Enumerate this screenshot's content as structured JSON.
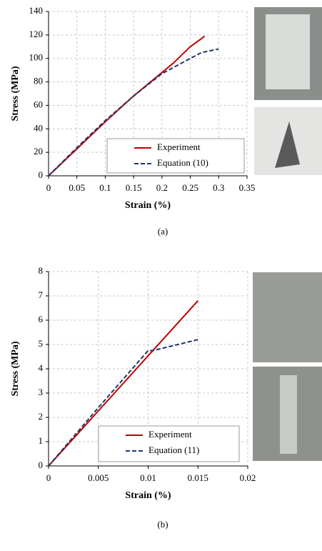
{
  "chart_data": [
    {
      "type": "line",
      "x_label": "Strain (%)",
      "y_label": "Stress (MPa)",
      "caption": "(a)",
      "xlim": [
        0,
        0.35
      ],
      "xticks": [
        0,
        0.05,
        0.1,
        0.15,
        0.2,
        0.25,
        0.3,
        0.35
      ],
      "ylim": [
        0,
        140
      ],
      "yticks": [
        0,
        20,
        40,
        60,
        80,
        100,
        120,
        140
      ],
      "grid": true,
      "legend": "lower right",
      "series": [
        {
          "name": "Experiment",
          "color": "#c00000",
          "style": "solid",
          "x": [
            0,
            0.05,
            0.1,
            0.15,
            0.2,
            0.22,
            0.25,
            0.27,
            0.275
          ],
          "values": [
            0,
            23,
            46,
            68,
            88,
            96,
            110,
            117,
            119
          ]
        },
        {
          "name": "Equation (10)",
          "color": "#1f3864",
          "style": "dashed",
          "x": [
            0,
            0.05,
            0.1,
            0.15,
            0.2,
            0.25,
            0.27,
            0.3
          ],
          "values": [
            0,
            24,
            47,
            68,
            87,
            100,
            105,
            108
          ]
        }
      ]
    },
    {
      "type": "line",
      "x_label": "Strain (%)",
      "y_label": "Stress (MPa)",
      "caption": "(b)",
      "xlim": [
        0,
        0.02
      ],
      "xticks": [
        0,
        0.005,
        0.01,
        0.015,
        0.02
      ],
      "ylim": [
        0,
        8
      ],
      "yticks": [
        0,
        1,
        2,
        3,
        4,
        5,
        6,
        7,
        8
      ],
      "grid": true,
      "legend": "lower right",
      "series": [
        {
          "name": "Experiment",
          "color": "#c00000",
          "style": "solid",
          "x": [
            0,
            0.015
          ],
          "values": [
            0,
            6.8
          ]
        },
        {
          "name": "Equation (11)",
          "color": "#1f3864",
          "style": "dashed",
          "x": [
            0,
            0.005,
            0.01,
            0.0105,
            0.015
          ],
          "values": [
            0,
            2.4,
            4.75,
            4.75,
            5.2
          ]
        }
      ]
    }
  ]
}
